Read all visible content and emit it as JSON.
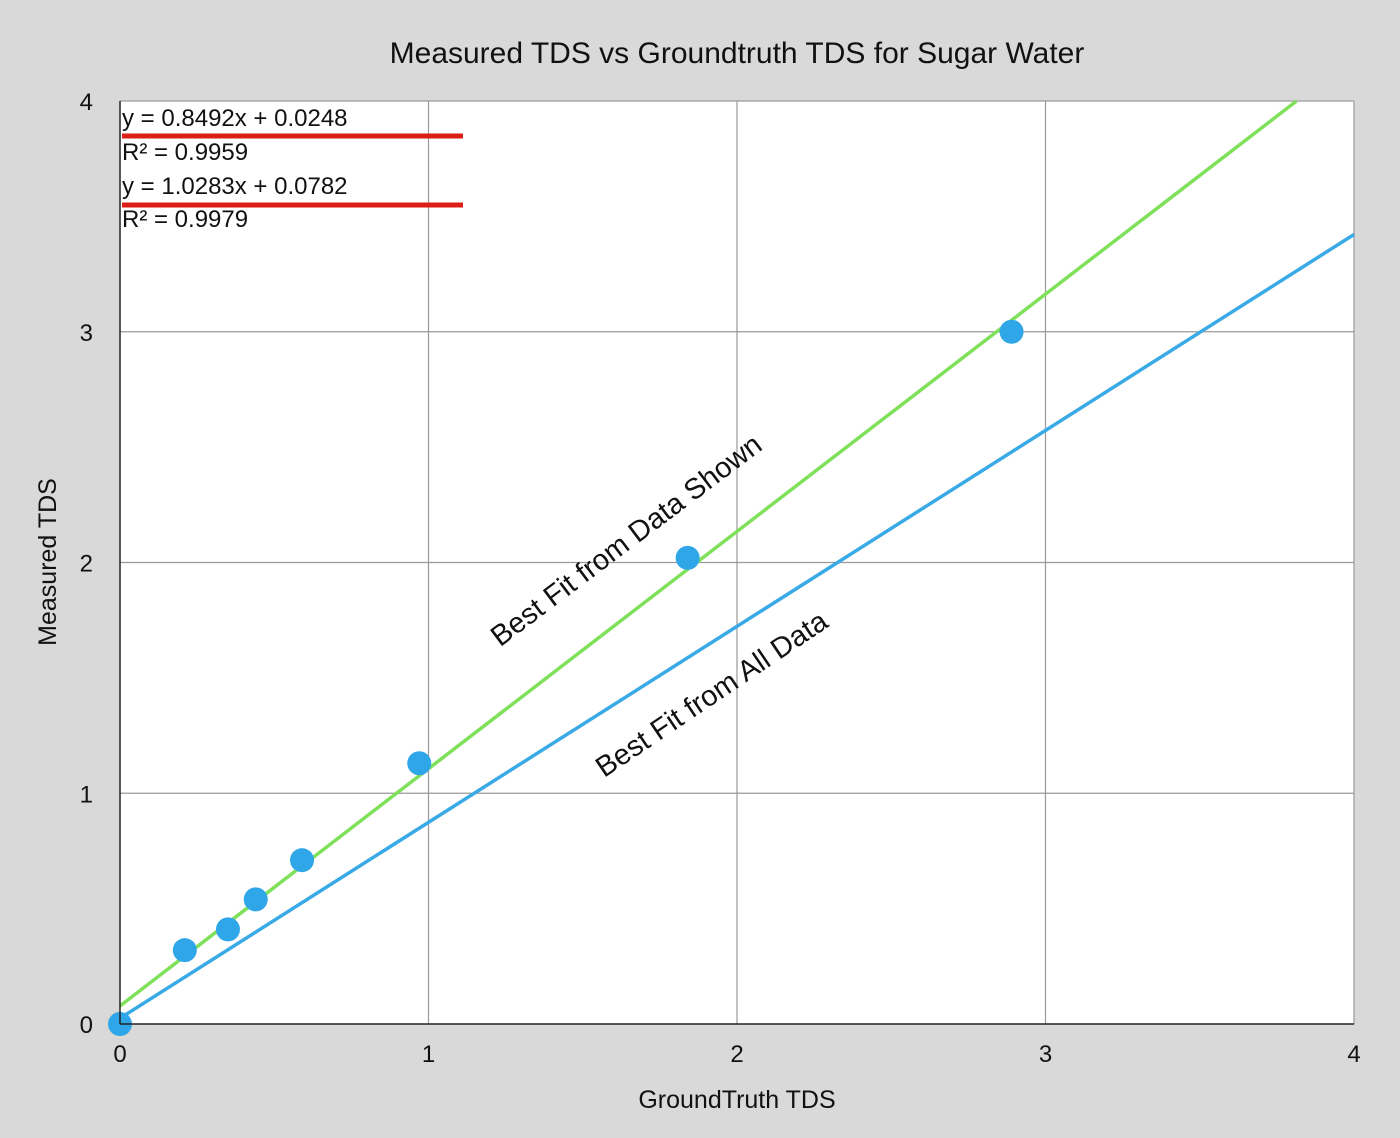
{
  "chart_data": {
    "type": "scatter",
    "title": "Measured TDS vs Groundtruth TDS for Sugar Water",
    "xlabel": "GroundTruth TDS",
    "ylabel": "Measured TDS",
    "xlim": [
      0,
      4
    ],
    "ylim": [
      0,
      4
    ],
    "xticks": [
      "0",
      "1",
      "2",
      "3",
      "4"
    ],
    "yticks": [
      "0",
      "1",
      "2",
      "3",
      "4"
    ],
    "grid": true,
    "series": [
      {
        "type": "scatter",
        "color": "#2ea6e8",
        "x": [
          0,
          0.21,
          0.35,
          0.44,
          0.59,
          0.97,
          1.84,
          2.89
        ],
        "y": [
          0,
          0.32,
          0.41,
          0.54,
          0.71,
          1.13,
          2.02,
          3.0
        ]
      }
    ],
    "trendlines": [
      {
        "slope": 0.8492,
        "intercept": 0.0248,
        "color": "#3aaae6",
        "equation": "y = 0.8492x + 0.0248",
        "r2": "R² = 0.9959"
      },
      {
        "slope": 1.0283,
        "intercept": 0.0782,
        "color": "#7fe05a",
        "equation": "y = 1.0283x + 0.0782",
        "r2": "R² = 0.9979"
      }
    ],
    "annotations": [
      {
        "text": "Best Fit from Data Shown",
        "color": "#111111"
      },
      {
        "text": "Best Fit from All Data",
        "color": "#111111"
      }
    ],
    "underline_color": "#dd1e14"
  }
}
